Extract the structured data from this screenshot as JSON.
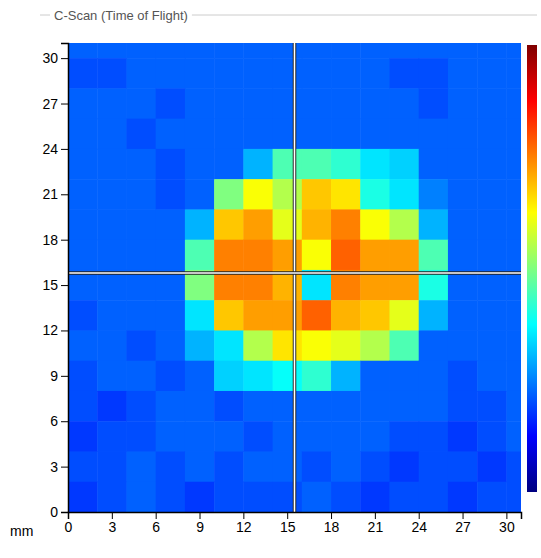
{
  "chart_data": {
    "type": "heatmap",
    "title": "C-Scan (Time of Flight)",
    "xlabel": "mm",
    "xlim": [
      0,
      31
    ],
    "ylim": [
      0,
      31
    ],
    "xticks": [
      0,
      3,
      6,
      9,
      12,
      15,
      18,
      21,
      24,
      27,
      30
    ],
    "yticks": [
      0,
      3,
      6,
      9,
      12,
      15,
      18,
      21,
      24,
      27,
      30
    ],
    "x": [
      1,
      3,
      5,
      7,
      9,
      11,
      13,
      15,
      17,
      19,
      21,
      23,
      25,
      27,
      29,
      31
    ],
    "y": [
      31,
      29,
      27,
      25,
      23,
      21,
      19,
      17,
      15,
      13,
      11,
      9,
      7,
      5,
      3,
      1
    ],
    "z": [
      [
        0.22,
        0.22,
        0.22,
        0.22,
        0.22,
        0.22,
        0.22,
        0.22,
        0.22,
        0.22,
        0.22,
        0.22,
        0.22,
        0.22,
        0.22,
        0.22
      ],
      [
        0.2,
        0.2,
        0.22,
        0.22,
        0.22,
        0.22,
        0.22,
        0.22,
        0.22,
        0.22,
        0.22,
        0.2,
        0.2,
        0.22,
        0.22,
        0.22
      ],
      [
        0.22,
        0.22,
        0.22,
        0.2,
        0.22,
        0.22,
        0.22,
        0.22,
        0.22,
        0.22,
        0.22,
        0.22,
        0.2,
        0.22,
        0.22,
        0.22
      ],
      [
        0.22,
        0.22,
        0.2,
        0.22,
        0.22,
        0.22,
        0.22,
        0.22,
        0.22,
        0.22,
        0.22,
        0.22,
        0.22,
        0.22,
        0.22,
        0.22
      ],
      [
        0.22,
        0.22,
        0.22,
        0.2,
        0.22,
        0.22,
        0.3,
        0.45,
        0.45,
        0.42,
        0.35,
        0.33,
        0.22,
        0.22,
        0.22,
        0.22
      ],
      [
        0.22,
        0.22,
        0.22,
        0.2,
        0.22,
        0.5,
        0.62,
        0.55,
        0.68,
        0.65,
        0.4,
        0.35,
        0.25,
        0.22,
        0.22,
        0.22
      ],
      [
        0.22,
        0.22,
        0.22,
        0.22,
        0.3,
        0.68,
        0.72,
        0.6,
        0.7,
        0.75,
        0.62,
        0.55,
        0.3,
        0.22,
        0.22,
        0.22
      ],
      [
        0.22,
        0.22,
        0.22,
        0.22,
        0.45,
        0.75,
        0.75,
        0.72,
        0.62,
        0.78,
        0.72,
        0.72,
        0.45,
        0.22,
        0.22,
        0.22
      ],
      [
        0.22,
        0.22,
        0.22,
        0.22,
        0.5,
        0.75,
        0.75,
        0.7,
        0.35,
        0.75,
        0.72,
        0.72,
        0.4,
        0.22,
        0.22,
        0.22
      ],
      [
        0.2,
        0.22,
        0.22,
        0.22,
        0.35,
        0.68,
        0.72,
        0.72,
        0.78,
        0.7,
        0.68,
        0.6,
        0.3,
        0.22,
        0.22,
        0.22
      ],
      [
        0.22,
        0.22,
        0.2,
        0.22,
        0.3,
        0.35,
        0.55,
        0.65,
        0.62,
        0.6,
        0.55,
        0.45,
        0.22,
        0.22,
        0.22,
        0.22
      ],
      [
        0.2,
        0.22,
        0.22,
        0.2,
        0.22,
        0.33,
        0.35,
        0.38,
        0.42,
        0.3,
        0.22,
        0.22,
        0.22,
        0.2,
        0.22,
        0.22
      ],
      [
        0.2,
        0.18,
        0.2,
        0.22,
        0.22,
        0.2,
        0.22,
        0.22,
        0.22,
        0.22,
        0.22,
        0.22,
        0.22,
        0.2,
        0.2,
        0.22
      ],
      [
        0.18,
        0.2,
        0.2,
        0.22,
        0.22,
        0.22,
        0.2,
        0.22,
        0.22,
        0.22,
        0.22,
        0.2,
        0.2,
        0.18,
        0.2,
        0.22
      ],
      [
        0.2,
        0.2,
        0.22,
        0.2,
        0.22,
        0.2,
        0.22,
        0.22,
        0.2,
        0.22,
        0.2,
        0.18,
        0.2,
        0.2,
        0.18,
        0.2
      ],
      [
        0.18,
        0.2,
        0.22,
        0.2,
        0.18,
        0.2,
        0.2,
        0.2,
        0.22,
        0.2,
        0.18,
        0.2,
        0.2,
        0.18,
        0.2,
        0.2
      ]
    ],
    "colorbar_range": [
      0,
      1
    ],
    "cursor": {
      "x": 15.5,
      "y": 15.8
    }
  }
}
